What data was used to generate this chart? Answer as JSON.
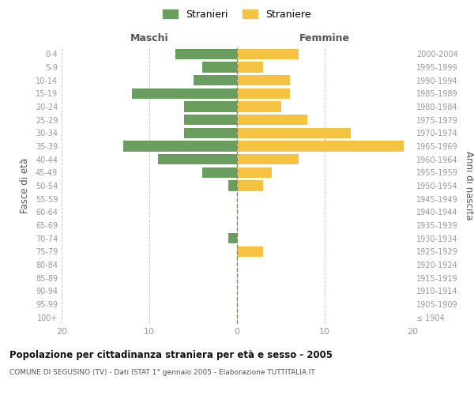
{
  "age_groups": [
    "100+",
    "95-99",
    "90-94",
    "85-89",
    "80-84",
    "75-79",
    "70-74",
    "65-69",
    "60-64",
    "55-59",
    "50-54",
    "45-49",
    "40-44",
    "35-39",
    "30-34",
    "25-29",
    "20-24",
    "15-19",
    "10-14",
    "5-9",
    "0-4"
  ],
  "birth_years": [
    "≤ 1904",
    "1905-1909",
    "1910-1914",
    "1915-1919",
    "1920-1924",
    "1925-1929",
    "1930-1934",
    "1935-1939",
    "1940-1944",
    "1945-1949",
    "1950-1954",
    "1955-1959",
    "1960-1964",
    "1965-1969",
    "1970-1974",
    "1975-1979",
    "1980-1984",
    "1985-1989",
    "1990-1994",
    "1995-1999",
    "2000-2004"
  ],
  "maschi": [
    0,
    0,
    0,
    0,
    0,
    0,
    1,
    0,
    0,
    0,
    1,
    4,
    9,
    13,
    6,
    6,
    6,
    12,
    5,
    4,
    7
  ],
  "femmine": [
    0,
    0,
    0,
    0,
    0,
    3,
    0,
    0,
    0,
    0,
    3,
    4,
    7,
    19,
    13,
    8,
    5,
    6,
    6,
    3,
    7
  ],
  "maschi_color": "#6a9e5e",
  "femmine_color": "#f5c242",
  "title": "Popolazione per cittadinanza straniera per età e sesso - 2005",
  "subtitle": "COMUNE DI SEGUSINO (TV) - Dati ISTAT 1° gennaio 2005 - Elaborazione TUTTITALIA.IT",
  "left_label": "Maschi",
  "right_label": "Femmine",
  "ylabel_left": "Fasce di età",
  "ylabel_right": "Anni di nascita",
  "legend_maschi": "Stranieri",
  "legend_femmine": "Straniere",
  "xlim": [
    -20,
    20
  ],
  "background_color": "#ffffff",
  "grid_color": "#cccccc",
  "bar_height": 0.8
}
